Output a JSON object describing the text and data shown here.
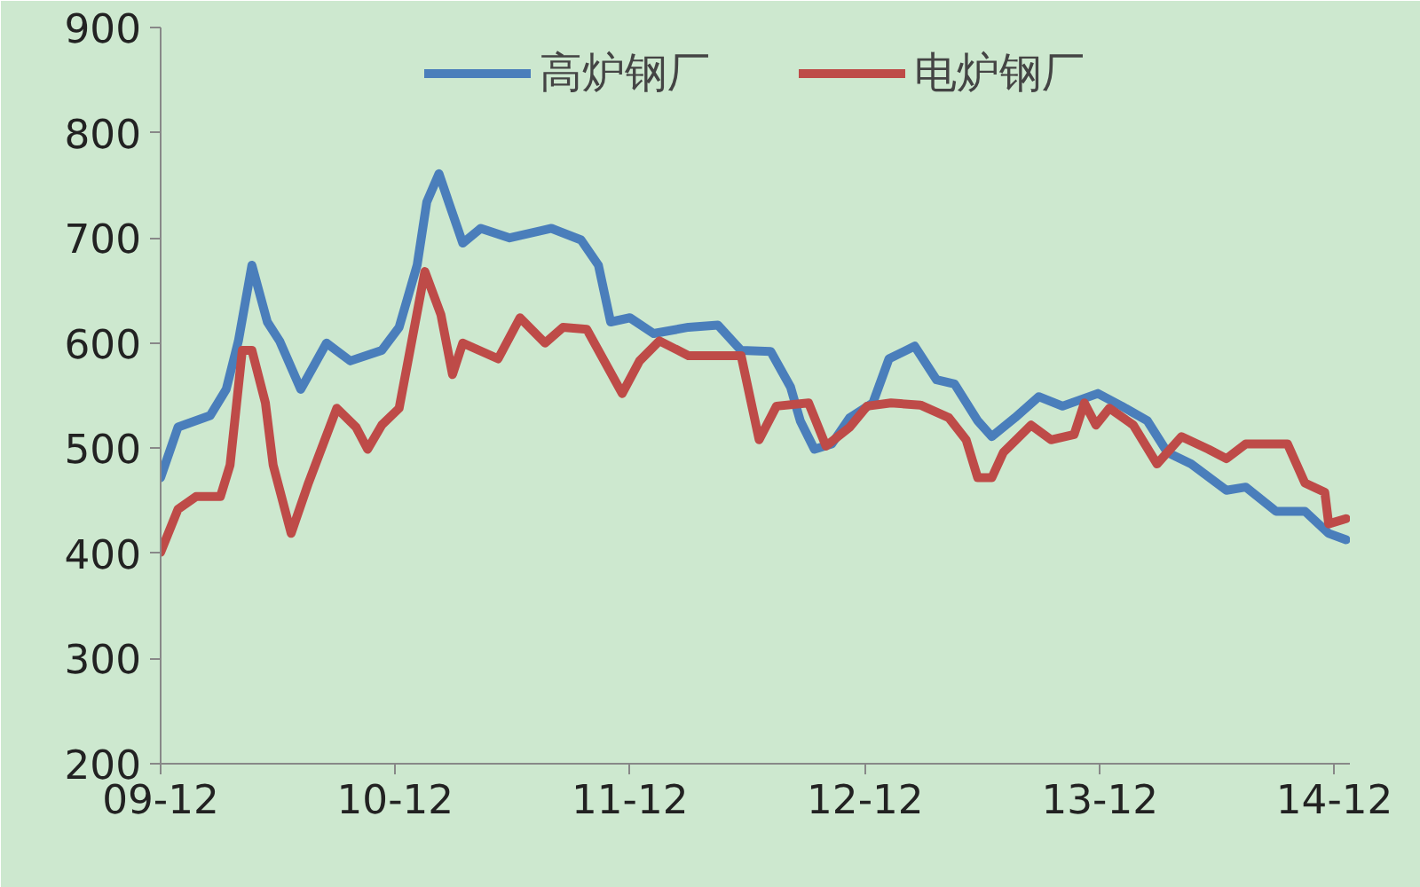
{
  "chart_data": {
    "type": "line",
    "legend": "top",
    "grid": false,
    "line_style": "solid",
    "marker": "none",
    "xlim": [
      "2009-12-01",
      "2014-12-25"
    ],
    "ylim": [
      200,
      900
    ],
    "xticks": [
      {
        "value": "2009-12",
        "label": "09-12"
      },
      {
        "value": "2010-12",
        "label": "10-12"
      },
      {
        "value": "2011-12",
        "label": "11-12"
      },
      {
        "value": "2012-12",
        "label": "12-12"
      },
      {
        "value": "2013-12",
        "label": "13-12"
      },
      {
        "value": "2014-12",
        "label": "14-12"
      }
    ],
    "yticks": [
      200,
      300,
      400,
      500,
      600,
      700,
      800,
      900
    ],
    "series": [
      {
        "name": "高炉钢厂",
        "color": "#4a7ebb",
        "x": [
          "2009-12-01",
          "2009-12-28",
          "2010-02-16",
          "2010-03-13",
          "2010-04-01",
          "2010-04-22",
          "2010-05-16",
          "2010-06-04",
          "2010-07-07",
          "2010-08-16",
          "2010-09-22",
          "2010-11-10",
          "2010-12-07",
          "2011-01-04",
          "2011-01-19",
          "2011-02-07",
          "2011-02-22",
          "2011-03-16",
          "2011-04-13",
          "2011-05-28",
          "2011-08-01",
          "2011-09-16",
          "2011-10-13",
          "2011-11-01",
          "2011-12-01",
          "2012-01-07",
          "2012-03-01",
          "2012-04-16",
          "2012-05-22",
          "2012-07-07",
          "2012-08-07",
          "2012-08-22",
          "2012-09-13",
          "2012-10-10",
          "2012-11-07",
          "2012-12-13",
          "2013-01-07",
          "2013-02-16",
          "2013-03-22",
          "2013-04-19",
          "2013-05-25",
          "2013-06-16",
          "2013-07-22",
          "2013-08-28",
          "2013-10-04",
          "2013-11-28",
          "2014-01-04",
          "2014-02-13",
          "2014-03-16",
          "2014-04-22",
          "2014-06-16",
          "2014-07-16",
          "2014-09-01",
          "2014-10-16",
          "2014-11-22",
          "2014-12-19"
        ],
        "values": [
          472,
          520,
          531,
          556,
          602,
          674,
          620,
          602,
          556,
          600,
          583,
          593,
          615,
          674,
          734,
          761,
          734,
          695,
          709,
          700,
          709,
          698,
          674,
          620,
          624,
          609,
          615,
          617,
          593,
          592,
          558,
          526,
          499,
          504,
          529,
          543,
          585,
          597,
          565,
          561,
          526,
          511,
          529,
          549,
          540,
          552,
          540,
          526,
          496,
          485,
          460,
          463,
          440,
          440,
          419,
          413
        ]
      },
      {
        "name": "电炉钢厂",
        "color": "#be4b48",
        "x": [
          "2009-12-01",
          "2009-12-28",
          "2010-01-25",
          "2010-03-04",
          "2010-03-19",
          "2010-04-07",
          "2010-04-22",
          "2010-05-13",
          "2010-05-25",
          "2010-06-22",
          "2010-07-19",
          "2010-09-01",
          "2010-10-01",
          "2010-10-19",
          "2010-11-10",
          "2010-12-07",
          "2011-01-16",
          "2011-02-10",
          "2011-02-28",
          "2011-03-16",
          "2011-05-10",
          "2011-06-13",
          "2011-07-22",
          "2011-08-19",
          "2011-09-25",
          "2011-11-19",
          "2011-12-16",
          "2012-01-16",
          "2012-03-01",
          "2012-05-22",
          "2012-06-19",
          "2012-07-16",
          "2012-09-04",
          "2012-10-01",
          "2012-11-07",
          "2012-12-04",
          "2013-01-10",
          "2013-02-25",
          "2013-04-10",
          "2013-05-07",
          "2013-05-25",
          "2013-06-16",
          "2013-07-04",
          "2013-08-16",
          "2013-09-16",
          "2013-10-22",
          "2013-11-07",
          "2013-11-25",
          "2013-12-16",
          "2014-01-22",
          "2014-02-28",
          "2014-04-07",
          "2014-05-19",
          "2014-06-16",
          "2014-07-16",
          "2014-09-19",
          "2014-10-16",
          "2014-11-16",
          "2014-11-22",
          "2014-12-19"
        ],
        "values": [
          401,
          442,
          454,
          454,
          484,
          593,
          593,
          543,
          484,
          419,
          467,
          538,
          520,
          499,
          522,
          538,
          668,
          627,
          570,
          600,
          585,
          624,
          600,
          615,
          613,
          552,
          583,
          602,
          588,
          588,
          508,
          540,
          543,
          502,
          520,
          540,
          543,
          541,
          529,
          508,
          472,
          472,
          496,
          522,
          508,
          513,
          543,
          522,
          538,
          522,
          485,
          511,
          499,
          490,
          504,
          504,
          467,
          458,
          428,
          433
        ]
      }
    ]
  }
}
